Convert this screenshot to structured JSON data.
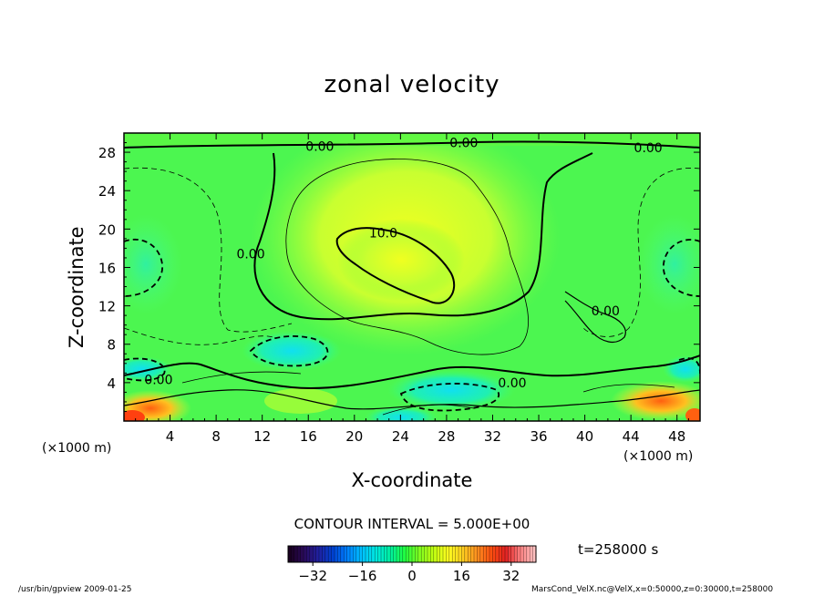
{
  "chart_data": {
    "type": "heatmap",
    "title": "zonal velocity",
    "xlabel": "X-coordinate",
    "ylabel": "Z-coordinate",
    "x_unit_label": "(×1000 m)",
    "xlim": [
      0,
      50
    ],
    "ylim": [
      0,
      30
    ],
    "x_ticks": [
      4,
      8,
      12,
      16,
      20,
      24,
      28,
      32,
      36,
      40,
      44,
      48
    ],
    "y_ticks": [
      4,
      8,
      12,
      16,
      20,
      24,
      28
    ],
    "contour_interval": "CONTOUR INTERVAL = 5.000E+00",
    "contour_labels": [
      {
        "text": "0.00",
        "x": 17,
        "y": 28.6
      },
      {
        "text": "0.00",
        "x": 29.5,
        "y": 29.0
      },
      {
        "text": "0.00",
        "x": 45.5,
        "y": 28.5
      },
      {
        "text": "0.00",
        "x": 11.0,
        "y": 17.4
      },
      {
        "text": "10.0",
        "x": 22.5,
        "y": 19.6
      },
      {
        "text": "0.00",
        "x": 41.8,
        "y": 11.5
      },
      {
        "text": "0.00",
        "x": 3.0,
        "y": 4.3
      },
      {
        "text": "0.00",
        "x": 33.7,
        "y": 4.0
      }
    ],
    "colorbar": {
      "range": [
        -40,
        40
      ],
      "ticks": [
        -32,
        -16,
        0,
        16,
        32
      ],
      "colors": [
        "#1a0020",
        "#2a0a5a",
        "#2020a0",
        "#0040d0",
        "#0080ff",
        "#00c0ff",
        "#00e8e0",
        "#00f0a0",
        "#20ff40",
        "#80ff20",
        "#c0ff10",
        "#ffff20",
        "#ffd020",
        "#ff9020",
        "#ff5010",
        "#e02020",
        "#ff8080",
        "#ffc0c0"
      ]
    },
    "time": "t=258000 s"
  },
  "footer": {
    "left": "/usr/bin/gpview   2009-01-25",
    "right": "MarsCond_VelX.nc@VelX,x=0:50000,z=0:30000,t=258000"
  }
}
